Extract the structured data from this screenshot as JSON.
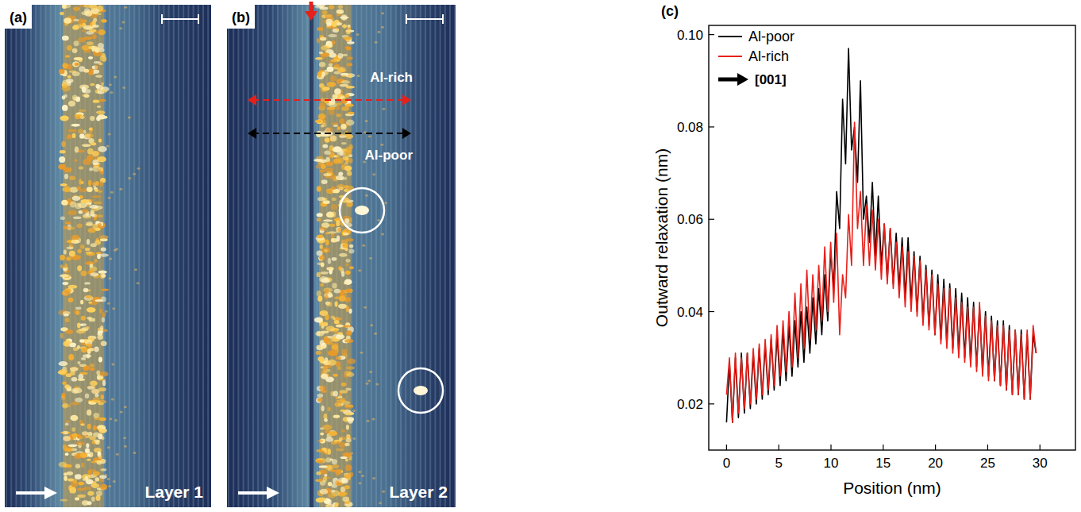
{
  "panels": [
    {
      "label": "(a)",
      "caption": "Layer 1"
    },
    {
      "label": "(b)",
      "caption": "Layer 2",
      "profiles": [
        {
          "name": "Al-rich",
          "color": "#e8201a"
        },
        {
          "name": "Al-poor",
          "color": "#000000"
        }
      ]
    }
  ],
  "chart_data": {
    "type": "line",
    "label": "(c)",
    "x_label": "Position (nm)",
    "y_label": "Outward relaxation (nm)",
    "annotations": [
      "[001]"
    ],
    "legend": "top-left",
    "x": [
      0,
      0.28,
      0.57,
      0.85,
      1.14,
      1.42,
      1.71,
      1.99,
      2.28,
      2.56,
      2.85,
      3.13,
      3.42,
      3.7,
      3.99,
      4.27,
      4.56,
      4.84,
      5.13,
      5.41,
      5.7,
      5.98,
      6.27,
      6.55,
      6.84,
      7.12,
      7.41,
      7.69,
      7.98,
      8.26,
      8.55,
      8.83,
      9.12,
      9.4,
      9.69,
      9.97,
      10.26,
      10.54,
      10.83,
      11.11,
      11.4,
      11.68,
      11.97,
      12.25,
      12.54,
      12.82,
      13.11,
      13.39,
      13.68,
      13.96,
      14.25,
      14.53,
      14.82,
      15.1,
      15.39,
      15.67,
      15.96,
      16.24,
      16.53,
      16.81,
      17.1,
      17.38,
      17.67,
      17.95,
      18.24,
      18.52,
      18.81,
      19.09,
      19.38,
      19.66,
      19.95,
      20.23,
      20.52,
      20.8,
      21.09,
      21.37,
      21.66,
      21.94,
      22.23,
      22.51,
      22.8,
      23.08,
      23.37,
      23.65,
      23.94,
      24.22,
      24.51,
      24.79,
      25.08,
      25.36,
      25.65,
      25.93,
      26.22,
      26.5,
      26.79,
      27.07,
      27.36,
      27.64,
      27.93,
      28.21,
      28.5,
      28.78,
      29.07,
      29.35,
      29.64
    ],
    "series": [
      {
        "name": "Al-poor",
        "color": "#000000",
        "values": [
          0.016,
          0.029,
          0.016,
          0.03,
          0.017,
          0.031,
          0.018,
          0.031,
          0.019,
          0.031,
          0.02,
          0.032,
          0.021,
          0.033,
          0.022,
          0.034,
          0.023,
          0.035,
          0.024,
          0.036,
          0.025,
          0.037,
          0.026,
          0.038,
          0.028,
          0.04,
          0.029,
          0.041,
          0.031,
          0.043,
          0.033,
          0.045,
          0.035,
          0.048,
          0.038,
          0.053,
          0.045,
          0.066,
          0.058,
          0.086,
          0.072,
          0.097,
          0.075,
          0.08,
          0.068,
          0.09,
          0.06,
          0.065,
          0.055,
          0.068,
          0.052,
          0.065,
          0.05,
          0.059,
          0.047,
          0.058,
          0.046,
          0.057,
          0.045,
          0.056,
          0.043,
          0.056,
          0.042,
          0.053,
          0.04,
          0.052,
          0.038,
          0.05,
          0.037,
          0.049,
          0.035,
          0.048,
          0.034,
          0.047,
          0.033,
          0.046,
          0.032,
          0.045,
          0.031,
          0.044,
          0.03,
          0.043,
          0.029,
          0.042,
          0.028,
          0.041,
          0.027,
          0.04,
          0.026,
          0.039,
          0.025,
          0.038,
          0.024,
          0.038,
          0.023,
          0.037,
          0.022,
          0.036,
          0.022,
          0.036,
          0.021,
          0.035,
          0.021,
          0.035,
          0.031
        ]
      },
      {
        "name": "Al-rich",
        "color": "#e8201a",
        "values": [
          0.022,
          0.03,
          0.016,
          0.031,
          0.018,
          0.03,
          0.019,
          0.031,
          0.02,
          0.032,
          0.021,
          0.033,
          0.022,
          0.034,
          0.023,
          0.035,
          0.024,
          0.037,
          0.026,
          0.038,
          0.027,
          0.04,
          0.028,
          0.044,
          0.03,
          0.046,
          0.032,
          0.049,
          0.034,
          0.048,
          0.036,
          0.05,
          0.038,
          0.054,
          0.04,
          0.055,
          0.042,
          0.057,
          0.035,
          0.048,
          0.043,
          0.061,
          0.05,
          0.081,
          0.058,
          0.066,
          0.05,
          0.063,
          0.05,
          0.062,
          0.049,
          0.06,
          0.047,
          0.059,
          0.046,
          0.058,
          0.045,
          0.055,
          0.043,
          0.054,
          0.041,
          0.053,
          0.04,
          0.052,
          0.039,
          0.051,
          0.037,
          0.049,
          0.036,
          0.048,
          0.035,
          0.046,
          0.033,
          0.045,
          0.032,
          0.045,
          0.031,
          0.043,
          0.03,
          0.042,
          0.029,
          0.041,
          0.028,
          0.041,
          0.027,
          0.042,
          0.026,
          0.039,
          0.025,
          0.038,
          0.025,
          0.037,
          0.024,
          0.037,
          0.023,
          0.036,
          0.022,
          0.036,
          0.022,
          0.035,
          0.021,
          0.036,
          0.021,
          0.037,
          0.031
        ]
      }
    ],
    "xlim": [
      -1.7,
      33.4
    ],
    "ylim": [
      0.01,
      0.102
    ],
    "xticks": [
      0,
      5,
      10,
      15,
      20,
      25,
      30
    ],
    "yticks": [
      0.02,
      0.04,
      0.06,
      0.08,
      {
        "value": 0.1,
        "label": "0.10"
      }
    ],
    "grid": false
  }
}
